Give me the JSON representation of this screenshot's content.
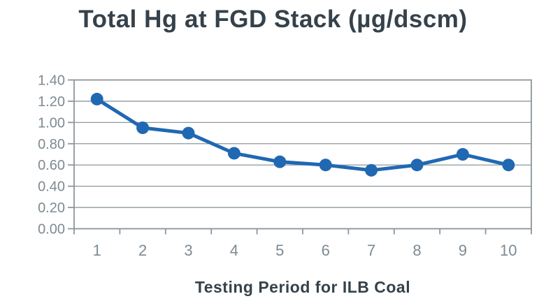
{
  "chart_data": {
    "type": "line",
    "title": "Total Hg at FGD Stack (µg/dscm)",
    "xlabel": "Testing Period for ILB Coal",
    "ylabel": "",
    "categories": [
      "1",
      "2",
      "3",
      "4",
      "5",
      "6",
      "7",
      "8",
      "9",
      "10"
    ],
    "series": [
      {
        "name": "Total Hg (µg/dscm)",
        "values": [
          1.22,
          0.95,
          0.9,
          0.71,
          0.63,
          0.6,
          0.55,
          0.6,
          0.7,
          0.6
        ]
      }
    ],
    "ylim": [
      0.0,
      1.4
    ],
    "ytick_step": 0.2,
    "ytick_labels": [
      "0.00",
      "0.20",
      "0.40",
      "0.60",
      "0.80",
      "1.00",
      "1.20",
      "1.40"
    ],
    "grid": true,
    "legend_position": "none",
    "marker": "circle"
  },
  "style": {
    "line_color": "#2068b2",
    "marker_color": "#2068b2",
    "grid_color": "#8c979d",
    "axis_color": "#8c979d",
    "tick_label_color": "#7d8a92",
    "title_color": "#35424b",
    "background": "#ffffff"
  }
}
